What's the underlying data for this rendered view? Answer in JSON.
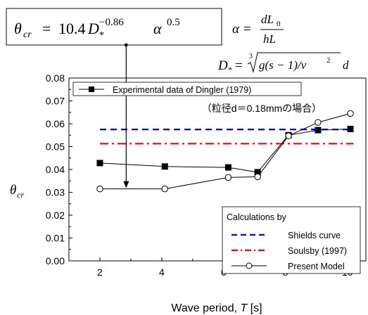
{
  "formula": {
    "theta_cr": "θ",
    "theta_sub": "cr",
    "equals": "=",
    "coefficient": "10.4",
    "d_star": "D",
    "d_star_sub": "*",
    "d_exponent": "−0.86",
    "alpha": "α",
    "alpha_exponent": "0.5",
    "coefficient_color": "#c00000"
  },
  "definitions": {
    "alpha_lhs": "α =",
    "alpha_num": "dL",
    "alpha_num_sub": "0",
    "alpha_den": "hL",
    "dstar_lhs": "D",
    "dstar_sub": "*",
    "dstar_eq": "=",
    "cube_index": "3",
    "dstar_rhs": "g(s − 1)/ν",
    "dstar_rhs_sup": "2",
    "dstar_tail": "d"
  },
  "chart_data": {
    "type": "line",
    "xlabel": "Wave period, ",
    "xlabel_var": "T",
    "xlabel_unit": " [s]",
    "ylabel": "θ",
    "ylabel_sub": "cr",
    "xlim": [
      1,
      10.6
    ],
    "ylim": [
      0,
      0.08
    ],
    "x_ticks": [
      2,
      4,
      6,
      8,
      10
    ],
    "y_ticks": [
      "0.00",
      "0.01",
      "0.02",
      "0.03",
      "0.04",
      "0.05",
      "0.06",
      "0.07",
      "0.08"
    ],
    "annotation": "（粒径d＝0.18mmの場合）",
    "legend_top": {
      "position": "top-left",
      "entries": [
        "Experimental data of Dingler (1979)"
      ]
    },
    "legend_bottom": {
      "position": "bottom-right",
      "title": "Calculations by",
      "entries": [
        "Shields curve",
        "Soulsby (1997)",
        "Present Model"
      ]
    },
    "series": [
      {
        "name": "Experimental data of Dingler (1979)",
        "marker": "filled-square",
        "color": "#000000",
        "x": [
          2.0,
          4.1,
          6.15,
          7.1,
          8.1,
          9.05,
          10.1
        ],
        "y": [
          0.0428,
          0.0413,
          0.0409,
          0.0388,
          0.055,
          0.0572,
          0.0577
        ]
      },
      {
        "name": "Shields curve",
        "style": "dashed",
        "color": "#0000ff",
        "x": [
          2.0,
          10.2
        ],
        "y": [
          0.0575,
          0.0575
        ]
      },
      {
        "name": "Soulsby (1997)",
        "style": "dash-dot",
        "color": "#ff0000",
        "x": [
          2.0,
          10.2
        ],
        "y": [
          0.0513,
          0.0513
        ]
      },
      {
        "name": "Present Model",
        "marker": "open-circle",
        "color": "#000000",
        "x": [
          2.0,
          4.1,
          6.15,
          7.1,
          8.1,
          9.05,
          10.1
        ],
        "y": [
          0.0315,
          0.0315,
          0.0365,
          0.0368,
          0.0547,
          0.0606,
          0.0645
        ]
      }
    ],
    "arrow": {
      "from_label": "coefficient",
      "to_x": 2.85,
      "to_y": 0.0315
    }
  }
}
